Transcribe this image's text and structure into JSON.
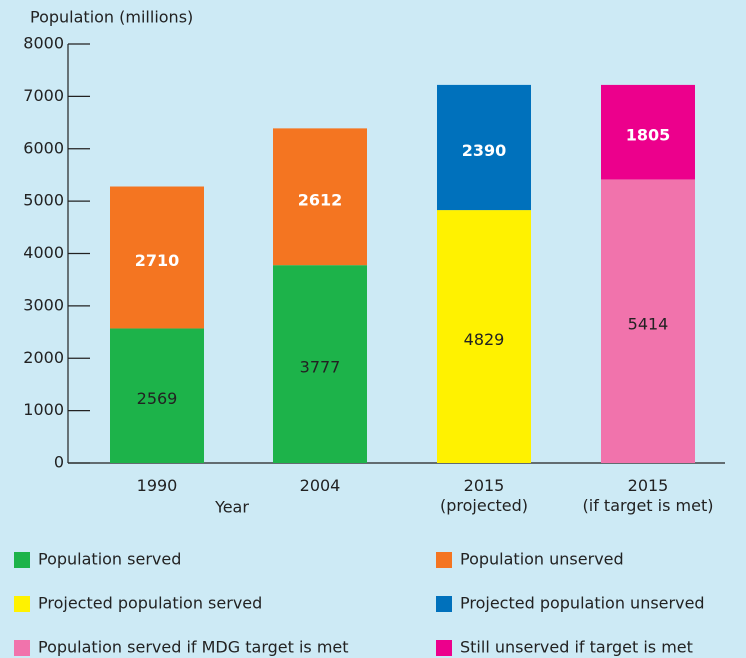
{
  "chart_data": {
    "type": "stacked_bar",
    "y_axis_label": "Population (millions)",
    "x_axis_label": "Year",
    "categories": [
      "1990",
      "2004",
      "2015\n(projected)",
      "2015\n(if target is met)"
    ],
    "series": [
      {
        "name": "Population served",
        "color": "#1db34a",
        "label_color": "#222222",
        "values": [
          2569,
          3777,
          null,
          null
        ]
      },
      {
        "name": "Population unserved",
        "color": "#f47521",
        "label_color": "#ffffff",
        "values": [
          2710,
          2612,
          null,
          null
        ]
      },
      {
        "name": "Projected population served",
        "color": "#fff200",
        "label_color": "#222222",
        "values": [
          null,
          null,
          4829,
          null
        ]
      },
      {
        "name": "Projected population unserved",
        "color": "#0071bc",
        "label_color": "#ffffff",
        "values": [
          null,
          null,
          2390,
          null
        ]
      },
      {
        "name": "Population served if MDG target is met",
        "color": "#f173ac",
        "label_color": "#222222",
        "values": [
          null,
          null,
          null,
          5414
        ]
      },
      {
        "name": "Still unserved if target is met",
        "color": "#ec008c",
        "label_color": "#ffffff",
        "values": [
          null,
          null,
          null,
          1805
        ]
      }
    ],
    "ylim": [
      0,
      8000
    ],
    "yticks": [
      0,
      1000,
      2000,
      3000,
      4000,
      5000,
      6000,
      7000,
      8000
    ],
    "grid": false
  }
}
